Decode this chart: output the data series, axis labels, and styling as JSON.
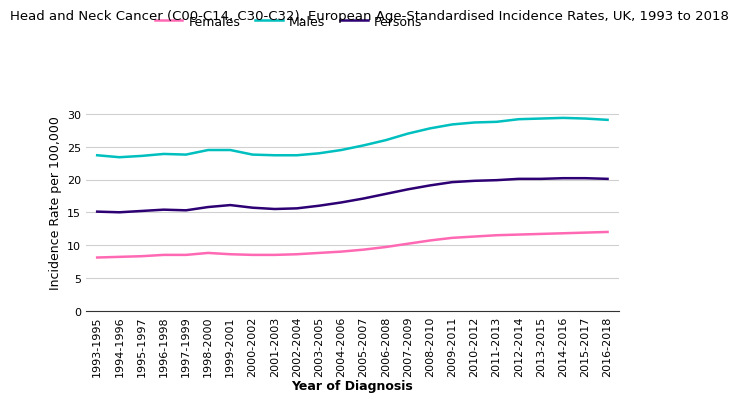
{
  "title": "Head and Neck Cancer (C00-C14, C30-C32), European Age-Standardised Incidence Rates, UK, 1993 to 2018",
  "xlabel": "Year of Diagnosis",
  "ylabel": "Incidence Rate per 100,000",
  "x_labels": [
    "1993-1995",
    "1994-1996",
    "1995-1997",
    "1996-1998",
    "1997-1999",
    "1998-2000",
    "1999-2001",
    "2000-2002",
    "2001-2003",
    "2002-2004",
    "2003-2005",
    "2004-2006",
    "2005-2007",
    "2006-2008",
    "2007-2009",
    "2008-2010",
    "2009-2011",
    "2010-2012",
    "2011-2013",
    "2012-2014",
    "2013-2015",
    "2014-2016",
    "2015-2017",
    "2016-2018"
  ],
  "females": [
    8.1,
    8.2,
    8.3,
    8.5,
    8.5,
    8.8,
    8.6,
    8.5,
    8.5,
    8.6,
    8.8,
    9.0,
    9.3,
    9.7,
    10.2,
    10.7,
    11.1,
    11.3,
    11.5,
    11.6,
    11.7,
    11.8,
    11.9,
    12.0
  ],
  "males": [
    23.7,
    23.4,
    23.6,
    23.9,
    23.8,
    24.5,
    24.5,
    23.8,
    23.7,
    23.7,
    24.0,
    24.5,
    25.2,
    26.0,
    27.0,
    27.8,
    28.4,
    28.7,
    28.8,
    29.2,
    29.3,
    29.4,
    29.3,
    29.1
  ],
  "persons": [
    15.1,
    15.0,
    15.2,
    15.4,
    15.3,
    15.8,
    16.1,
    15.7,
    15.5,
    15.6,
    16.0,
    16.5,
    17.1,
    17.8,
    18.5,
    19.1,
    19.6,
    19.8,
    19.9,
    20.1,
    20.1,
    20.2,
    20.2,
    20.1
  ],
  "females_color": "#FF69B4",
  "males_color": "#00BFBF",
  "persons_color": "#2D0073",
  "ylim": [
    0,
    33
  ],
  "yticks": [
    0,
    5,
    10,
    15,
    20,
    25,
    30
  ],
  "background_color": "#ffffff",
  "grid_color": "#d0d0d0",
  "title_fontsize": 9.5,
  "label_fontsize": 9,
  "tick_fontsize": 8,
  "legend_fontsize": 9,
  "linewidth": 1.8
}
